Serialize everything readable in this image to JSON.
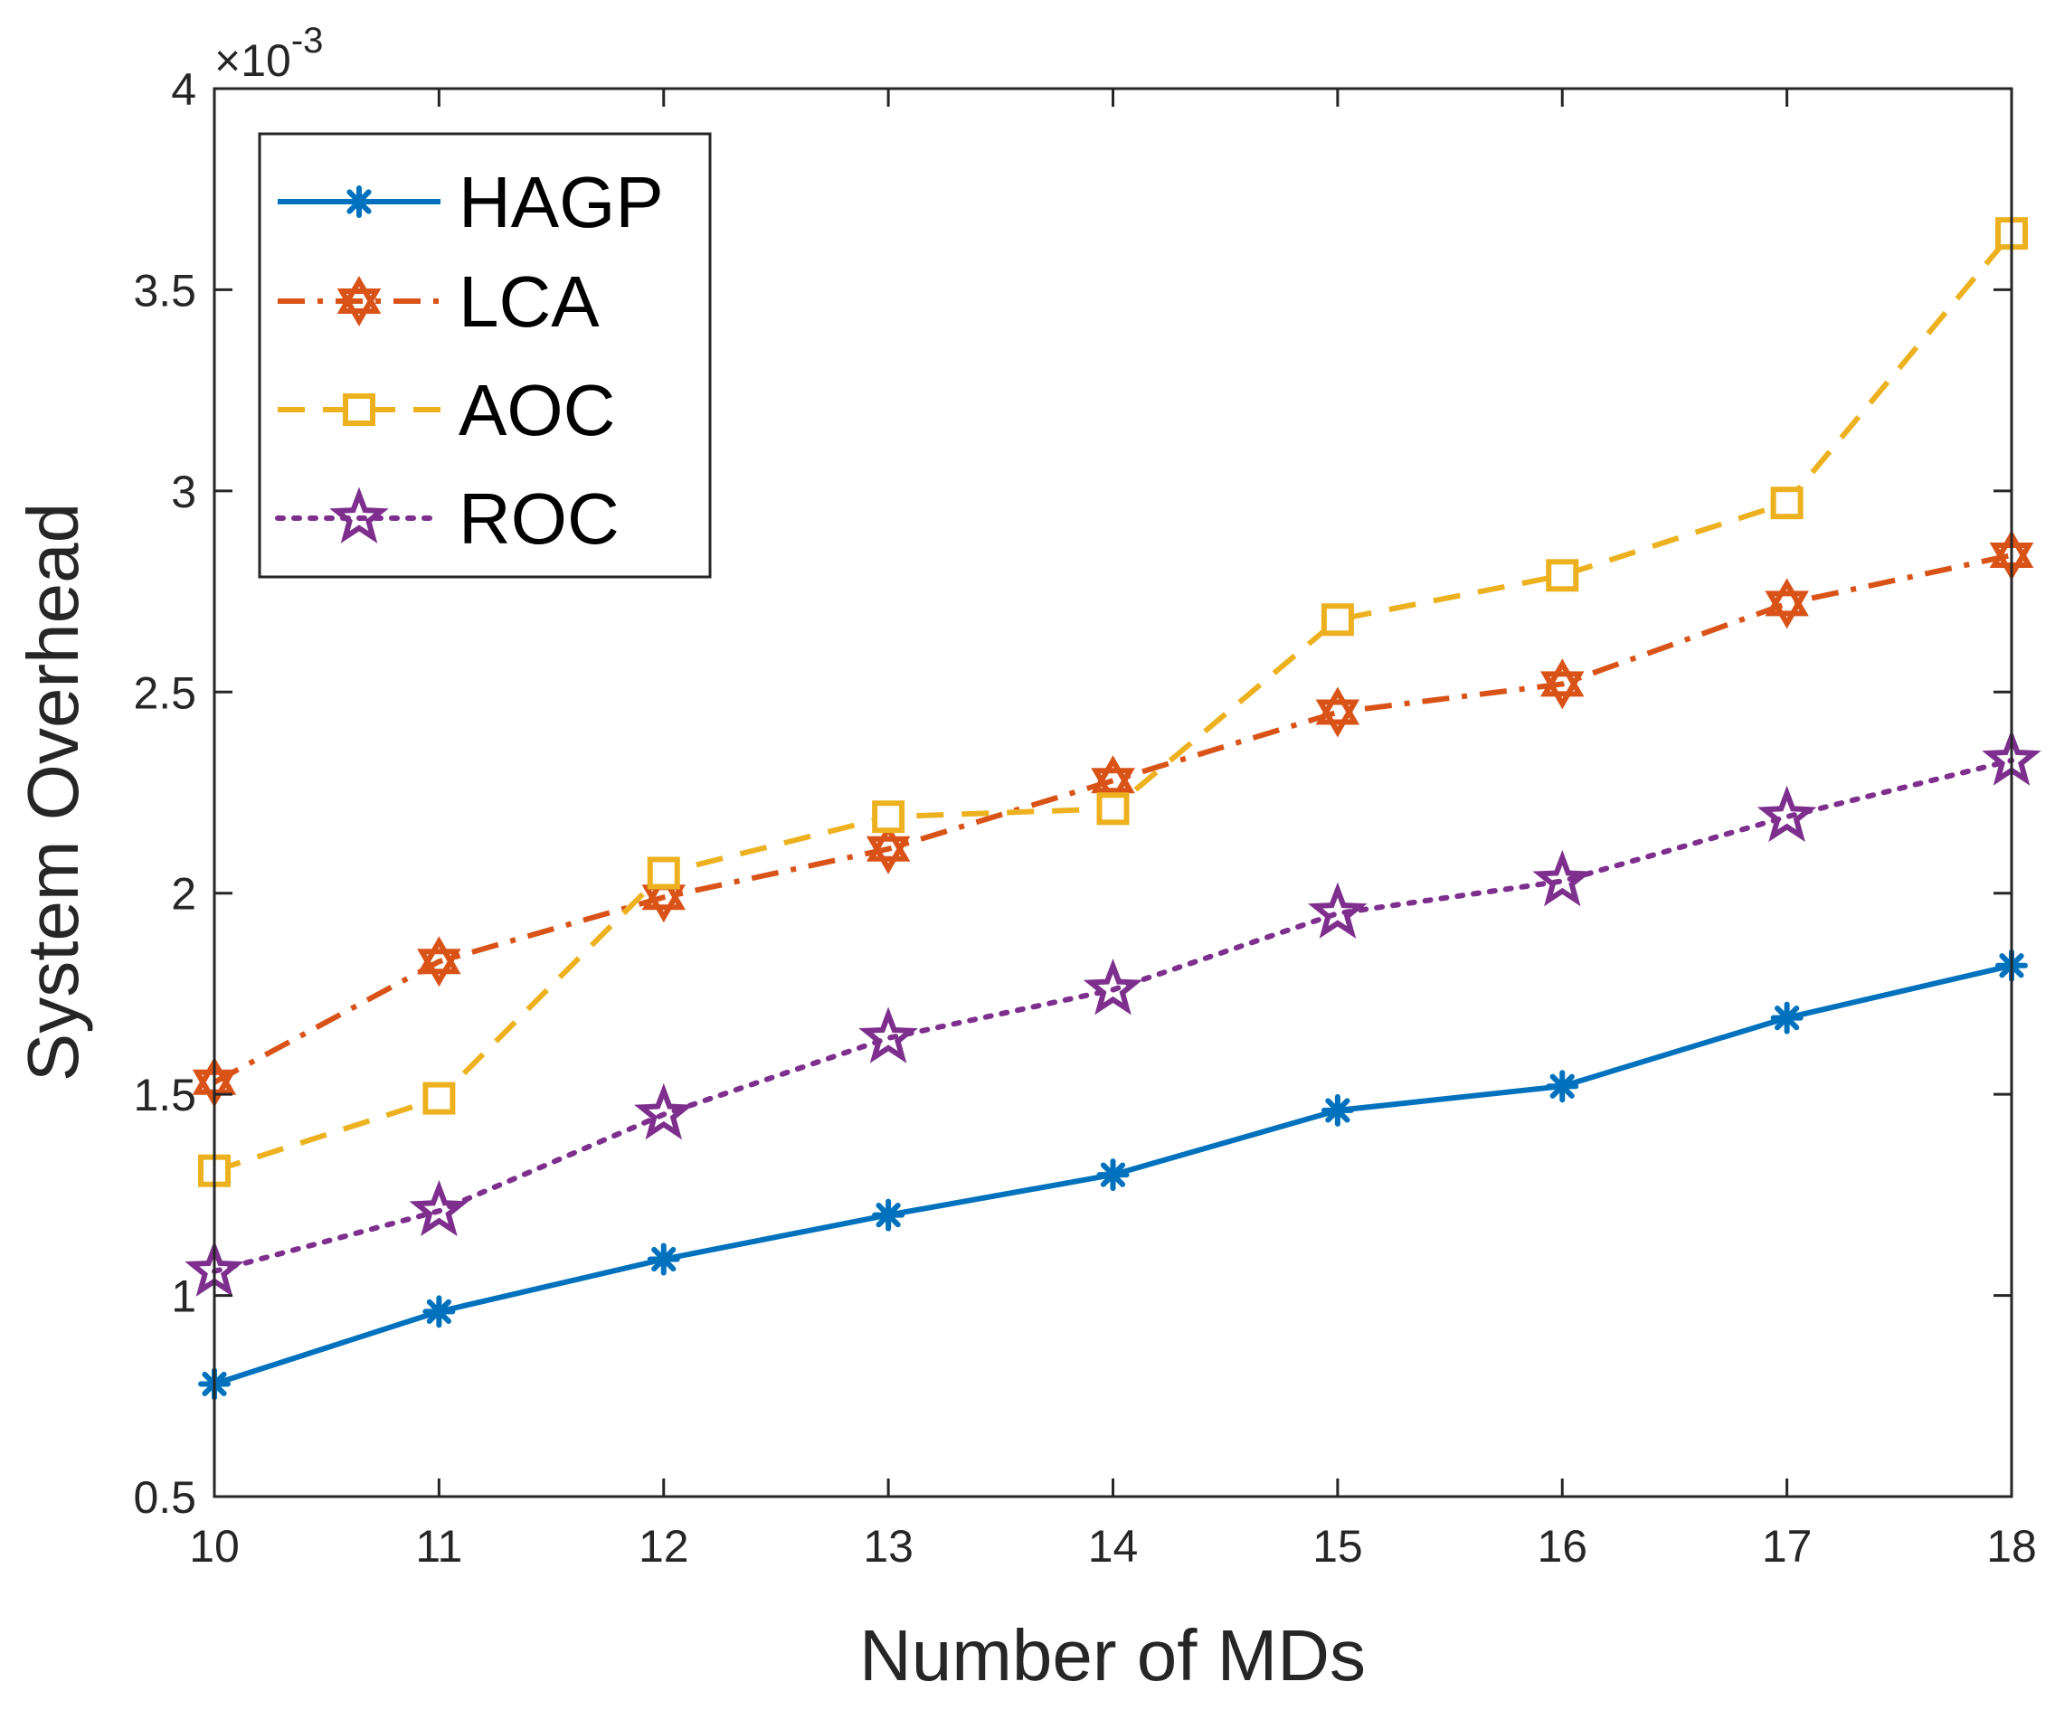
{
  "chart_data": {
    "type": "line",
    "title": "",
    "xlabel": "Number of MDs",
    "ylabel": "System Overhead",
    "y_multiplier_label": "×10",
    "y_multiplier_exponent": "-3",
    "xlim": [
      10,
      18
    ],
    "ylim": [
      0.5,
      4
    ],
    "x": [
      10,
      11,
      12,
      13,
      14,
      15,
      16,
      17,
      18
    ],
    "xticks": [
      "10",
      "11",
      "12",
      "13",
      "14",
      "15",
      "16",
      "17",
      "18"
    ],
    "yticks_values": [
      0.5,
      1,
      1.5,
      2,
      2.5,
      3,
      3.5,
      4
    ],
    "yticks": [
      "0.5",
      "1",
      "1.5",
      "2",
      "2.5",
      "3",
      "3.5",
      "4"
    ],
    "grid": false,
    "legend_position": "top-left",
    "series": [
      {
        "name": "HAGP",
        "color": "#0072BD",
        "line": "solid",
        "marker": "asterisk",
        "values": [
          0.78,
          0.96,
          1.09,
          1.2,
          1.3,
          1.46,
          1.52,
          1.69,
          1.82
        ]
      },
      {
        "name": "LCA",
        "color": "#D95319",
        "line": "dashdot",
        "marker": "hexagram",
        "values": [
          1.53,
          1.83,
          1.99,
          2.11,
          2.28,
          2.45,
          2.52,
          2.72,
          2.84
        ]
      },
      {
        "name": "AOC",
        "color": "#EDB120",
        "line": "dashed",
        "marker": "square",
        "values": [
          1.31,
          1.49,
          2.05,
          2.19,
          2.21,
          2.68,
          2.79,
          2.97,
          3.64
        ]
      },
      {
        "name": "ROC",
        "color": "#7E2F8E",
        "line": "dotted",
        "marker": "pentagram",
        "values": [
          1.06,
          1.21,
          1.45,
          1.64,
          1.76,
          1.95,
          2.03,
          2.19,
          2.33
        ]
      }
    ]
  }
}
